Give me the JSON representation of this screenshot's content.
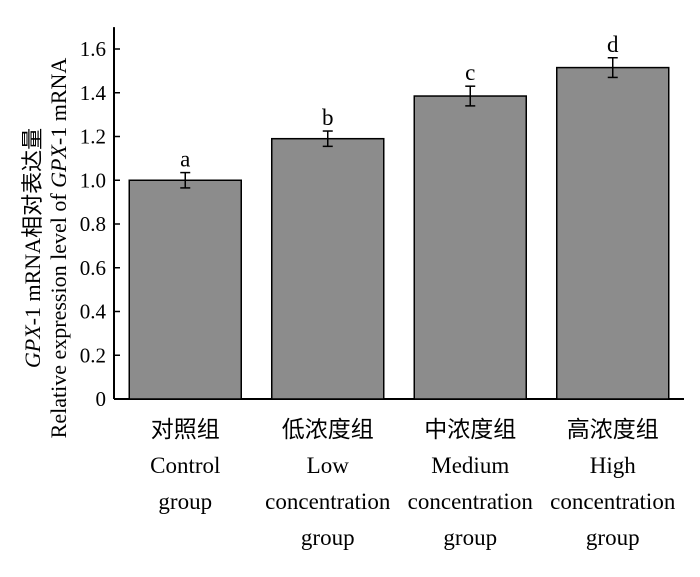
{
  "chart_data": {
    "type": "bar",
    "ylabel": {
      "line1_italic": "GPX",
      "line1_rest": "-1 mRNA相对表达量",
      "line2_prefix": "Relative expression level of ",
      "line2_italic": "GPX",
      "line2_rest": "-1 mRNA"
    },
    "ylim": [
      0,
      1.7
    ],
    "yticks": [
      "0",
      "0.2",
      "0.4",
      "0.6",
      "0.8",
      "1.0",
      "1.2",
      "1.4",
      "1.6"
    ],
    "categories": [
      {
        "cn": "对照组",
        "en": [
          "Control",
          "group"
        ]
      },
      {
        "cn": "低浓度组",
        "en": [
          "Low",
          "concentration",
          "group"
        ]
      },
      {
        "cn": "中浓度组",
        "en": [
          "Medium",
          "concentration",
          "group"
        ]
      },
      {
        "cn": "高浓度组",
        "en": [
          "High",
          "concentration",
          "group"
        ]
      }
    ],
    "values": [
      1.0,
      1.19,
      1.385,
      1.515
    ],
    "errors": [
      0.035,
      0.035,
      0.045,
      0.045
    ],
    "labels": [
      "a",
      "b",
      "c",
      "d"
    ],
    "bar_color": "#8c8c8c",
    "grid": false
  }
}
